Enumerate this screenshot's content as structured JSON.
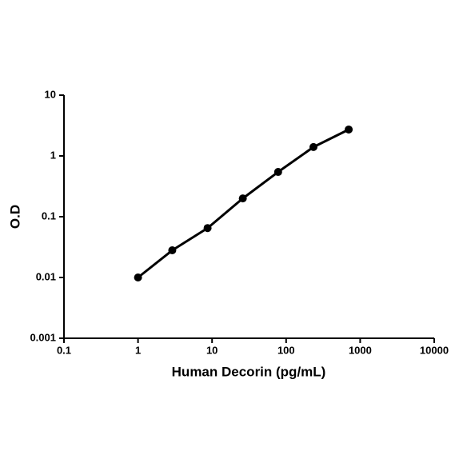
{
  "chart_data": {
    "type": "line",
    "xlabel": "Human Decorin (pg/mL)",
    "ylabel": "O.D",
    "xscale": "log",
    "yscale": "log",
    "x": [
      1,
      2.9,
      8.7,
      26,
      78,
      234,
      700
    ],
    "series": [
      {
        "color": "#000000",
        "values": [
          0.01,
          0.028,
          0.065,
          0.2,
          0.545,
          1.4,
          2.72
        ]
      }
    ],
    "xlim": [
      0.1,
      10000
    ],
    "xticks": [
      0.1,
      1,
      10,
      100,
      1000,
      10000
    ],
    "ylim": [
      0.001,
      10
    ],
    "yticks": [
      0.001,
      0.01,
      0.1,
      1,
      10
    ],
    "grid": false
  }
}
